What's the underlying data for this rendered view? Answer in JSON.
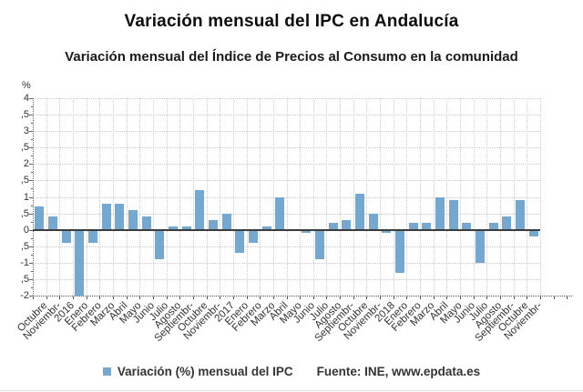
{
  "header": {
    "title": "Variación mensual del IPC en Andalucía",
    "subtitle": "Variación mensual del Índice de Precios al Consumo en la comunidad"
  },
  "chart_data": {
    "type": "bar",
    "title": "Variación mensual del IPC en Andalucía",
    "subtitle": "Variación mensual del Índice de Precios al Consumo en la comunidad",
    "unit_label": "%",
    "categories": [
      "Octubre",
      "Noviembr-",
      "2016",
      "Enero",
      "Febrero",
      "Marzo",
      "Abril",
      "Mayo",
      "Junio",
      "Julio",
      "Agosto",
      "Septiembr-",
      "Octubre",
      "Noviembr-",
      "2017",
      "Enero",
      "Febrero",
      "Marzo",
      "Abril",
      "Mayo",
      "Junio",
      "Julio",
      "Agosto",
      "Septiembr-",
      "Octubre",
      "Noviembr-",
      "2018",
      "Enero",
      "Febrero",
      "Marzo",
      "Abril",
      "Mayo",
      "Junio",
      "Julio",
      "Agosto",
      "Septiembr-",
      "Octubre",
      "Noviembr-"
    ],
    "values": [
      0.7,
      0.4,
      -0.4,
      -2.0,
      -0.4,
      0.8,
      0.8,
      0.6,
      0.4,
      -0.9,
      0.1,
      0.1,
      1.2,
      0.3,
      0.5,
      -0.7,
      -0.4,
      0.1,
      1.0,
      0.0,
      -0.1,
      -0.9,
      0.2,
      0.3,
      1.1,
      0.5,
      -0.1,
      -1.3,
      0.2,
      0.2,
      1.0,
      0.9,
      0.2,
      -1.0,
      0.2,
      0.4,
      0.9,
      -0.2
    ],
    "ylim": [
      -2,
      4
    ],
    "ytick_step": 0.5,
    "ytick_labels_displayed": [
      "4",
      ",5",
      "3",
      ",5",
      "2",
      ",5",
      "1",
      ",5",
      "0",
      ",5",
      "-1",
      ",5",
      "-2"
    ],
    "grid": true,
    "legend_position": "bottom",
    "bar_color": "#74a8d0",
    "legend": {
      "label": "Variación (%) mensual del IPC"
    },
    "source": "Fuente: INE, www.epdata.es"
  }
}
